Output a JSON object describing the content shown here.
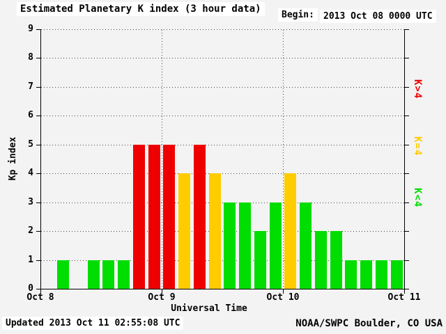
{
  "header": {
    "title": "Estimated Planetary K index (3 hour data)",
    "begin_label": "Begin:",
    "begin_value": "2013 Oct 08 0000 UTC"
  },
  "footer": {
    "updated": "Updated 2013 Oct 11 02:55:08 UTC",
    "source": "NOAA/SWPC Boulder, CO USA"
  },
  "chart_data": {
    "type": "bar",
    "title": "Estimated Planetary K index (3 hour data)",
    "xlabel": "Universal Time",
    "ylabel": "Kp index",
    "ylim": [
      0,
      9
    ],
    "ytick_labels": [
      "0",
      "1",
      "2",
      "3",
      "4",
      "5",
      "6",
      "7",
      "8",
      "9"
    ],
    "xtick_labels": [
      "Oct 8",
      "Oct 9",
      "Oct 10",
      "Oct 11"
    ],
    "grid": "dotted",
    "interval_hours": 3,
    "begin": "2013 Oct 08 0000 UTC",
    "values": [
      0,
      1,
      0,
      1,
      1,
      1,
      5,
      5,
      5,
      4,
      5,
      4,
      3,
      3,
      2,
      3,
      4,
      3,
      2,
      2,
      1,
      1,
      1,
      1
    ],
    "color_rules": {
      "below_4": "#00dd00",
      "equal_4": "#ffcc00",
      "above_4": "#ee0000"
    },
    "legend": [
      {
        "label": "K>4",
        "color": "#ee0000"
      },
      {
        "label": "K=4",
        "color": "#ffcc00"
      },
      {
        "label": "K<4",
        "color": "#00dd00"
      }
    ],
    "legend_position": "right"
  }
}
